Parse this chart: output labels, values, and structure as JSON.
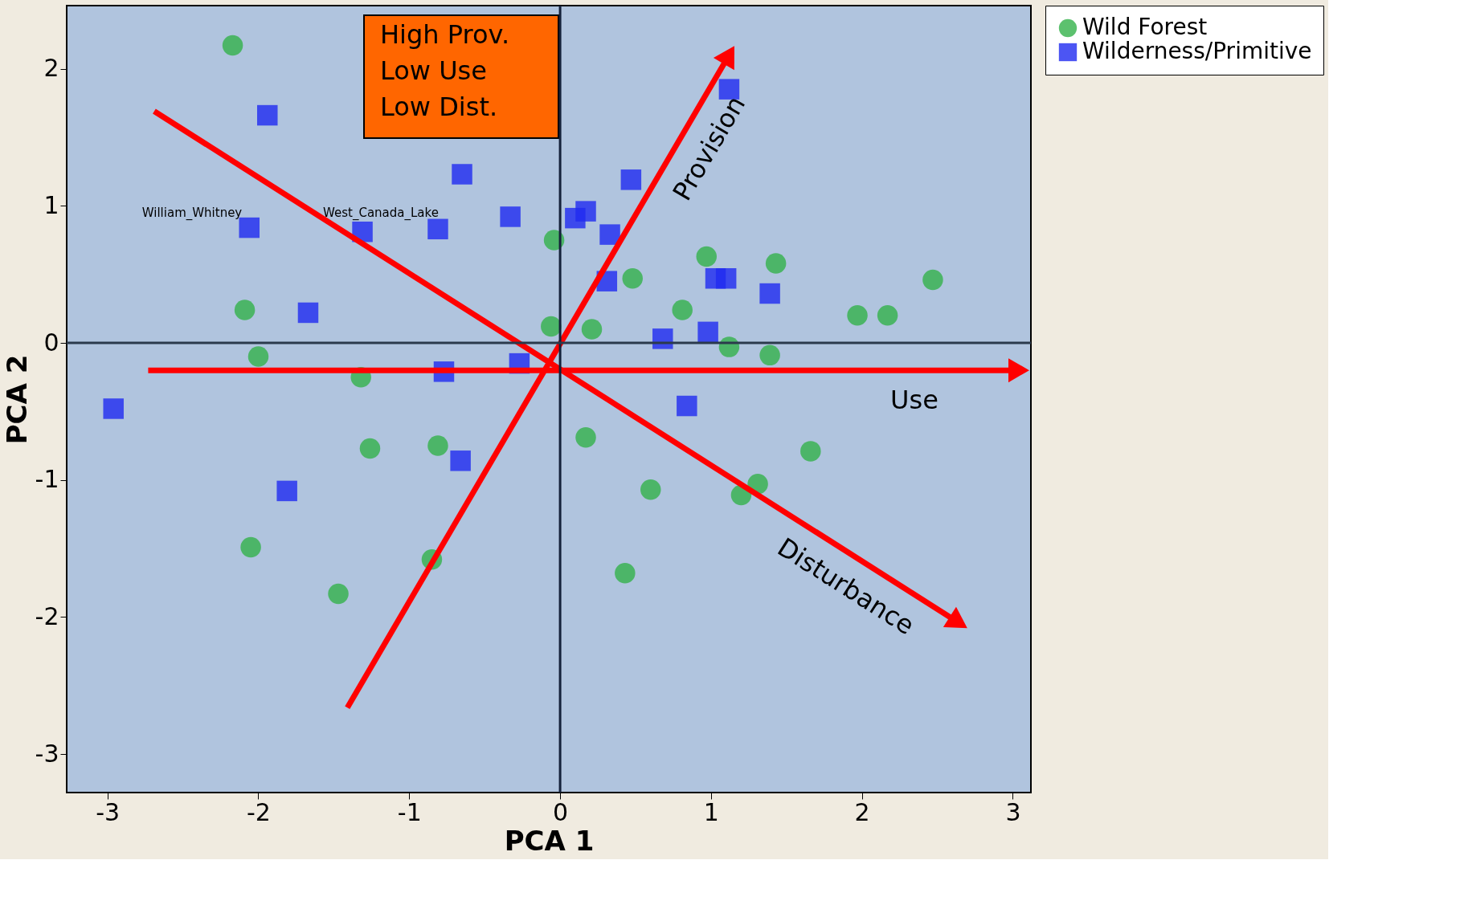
{
  "chart_data": {
    "type": "scatter",
    "xlabel": "PCA 1",
    "ylabel": "PCA 2",
    "xlim": [
      -3.27,
      3.12
    ],
    "ylim": [
      -3.28,
      2.46
    ],
    "xticks": [
      {
        "value": -3,
        "label": "-3"
      },
      {
        "value": -2,
        "label": "-2"
      },
      {
        "value": -1,
        "label": "-1"
      },
      0,
      1,
      2,
      3
    ],
    "yticks": [
      {
        "value": -3,
        "label": "-3"
      },
      {
        "value": -2,
        "label": "-2"
      },
      {
        "value": -1,
        "label": "-1"
      },
      0,
      1,
      2
    ],
    "grid": false,
    "legend": "right",
    "series": [
      {
        "name": "Wild Forest",
        "marker": "circle",
        "color": "#33b24a",
        "x": [
          -2.17,
          -2.09,
          -2.0,
          -1.32,
          -1.26,
          -0.81,
          -2.05,
          -1.47,
          -0.85,
          -0.04,
          -0.06,
          0.21,
          0.48,
          0.81,
          0.97,
          1.12,
          1.43,
          1.39,
          1.97,
          2.17,
          2.47,
          0.17,
          0.6,
          0.43,
          1.2,
          1.31,
          1.66
        ],
        "values": [
          2.17,
          0.24,
          -0.1,
          -0.25,
          -0.77,
          -0.75,
          -1.49,
          -1.83,
          -1.58,
          0.75,
          0.12,
          0.1,
          0.47,
          0.24,
          0.63,
          -0.03,
          0.58,
          -0.09,
          0.2,
          0.2,
          0.46,
          -0.69,
          -1.07,
          -1.68,
          -1.11,
          -1.03,
          -0.79
        ]
      },
      {
        "name": "Wilderness/Primitive",
        "marker": "square",
        "color": "#1f2bf0",
        "x": [
          -2.96,
          -1.94,
          -2.06,
          -1.67,
          -1.31,
          -0.81,
          -0.65,
          -0.33,
          -0.77,
          -0.27,
          -0.66,
          -1.81,
          0.1,
          0.17,
          0.33,
          0.47,
          0.31,
          1.12,
          1.03,
          1.1,
          1.39,
          0.68,
          0.98,
          0.84
        ],
        "values": [
          -0.48,
          1.66,
          0.84,
          0.22,
          0.81,
          0.83,
          1.23,
          0.92,
          -0.21,
          -0.15,
          -0.86,
          -1.08,
          0.91,
          0.96,
          0.79,
          1.19,
          0.45,
          1.85,
          0.47,
          0.47,
          0.36,
          0.03,
          0.08,
          -0.46
        ]
      },
      {
        "name": "Use",
        "type": "line",
        "color": "#ff0000",
        "x": [
          -2.73,
          3.04
        ],
        "values": [
          -0.2,
          -0.2
        ]
      },
      {
        "name": "Provision",
        "type": "line",
        "color": "#ff0000",
        "x": [
          -1.41,
          1.12
        ],
        "values": [
          -2.66,
          2.1
        ]
      },
      {
        "name": "Disturbance",
        "type": "line",
        "color": "#ff0000",
        "x": [
          -2.69,
          2.64
        ],
        "values": [
          1.69,
          -2.04
        ]
      }
    ],
    "ref_lines": [
      {
        "axis": "x",
        "value": 0,
        "color": "#14213a"
      },
      {
        "axis": "y",
        "value": 0,
        "color": "#2b3a4c"
      }
    ],
    "annotations": [
      "High Prov.\nLow Use\nLow Dist.",
      "William_Whitney",
      "West_Canada_Lake"
    ]
  }
}
